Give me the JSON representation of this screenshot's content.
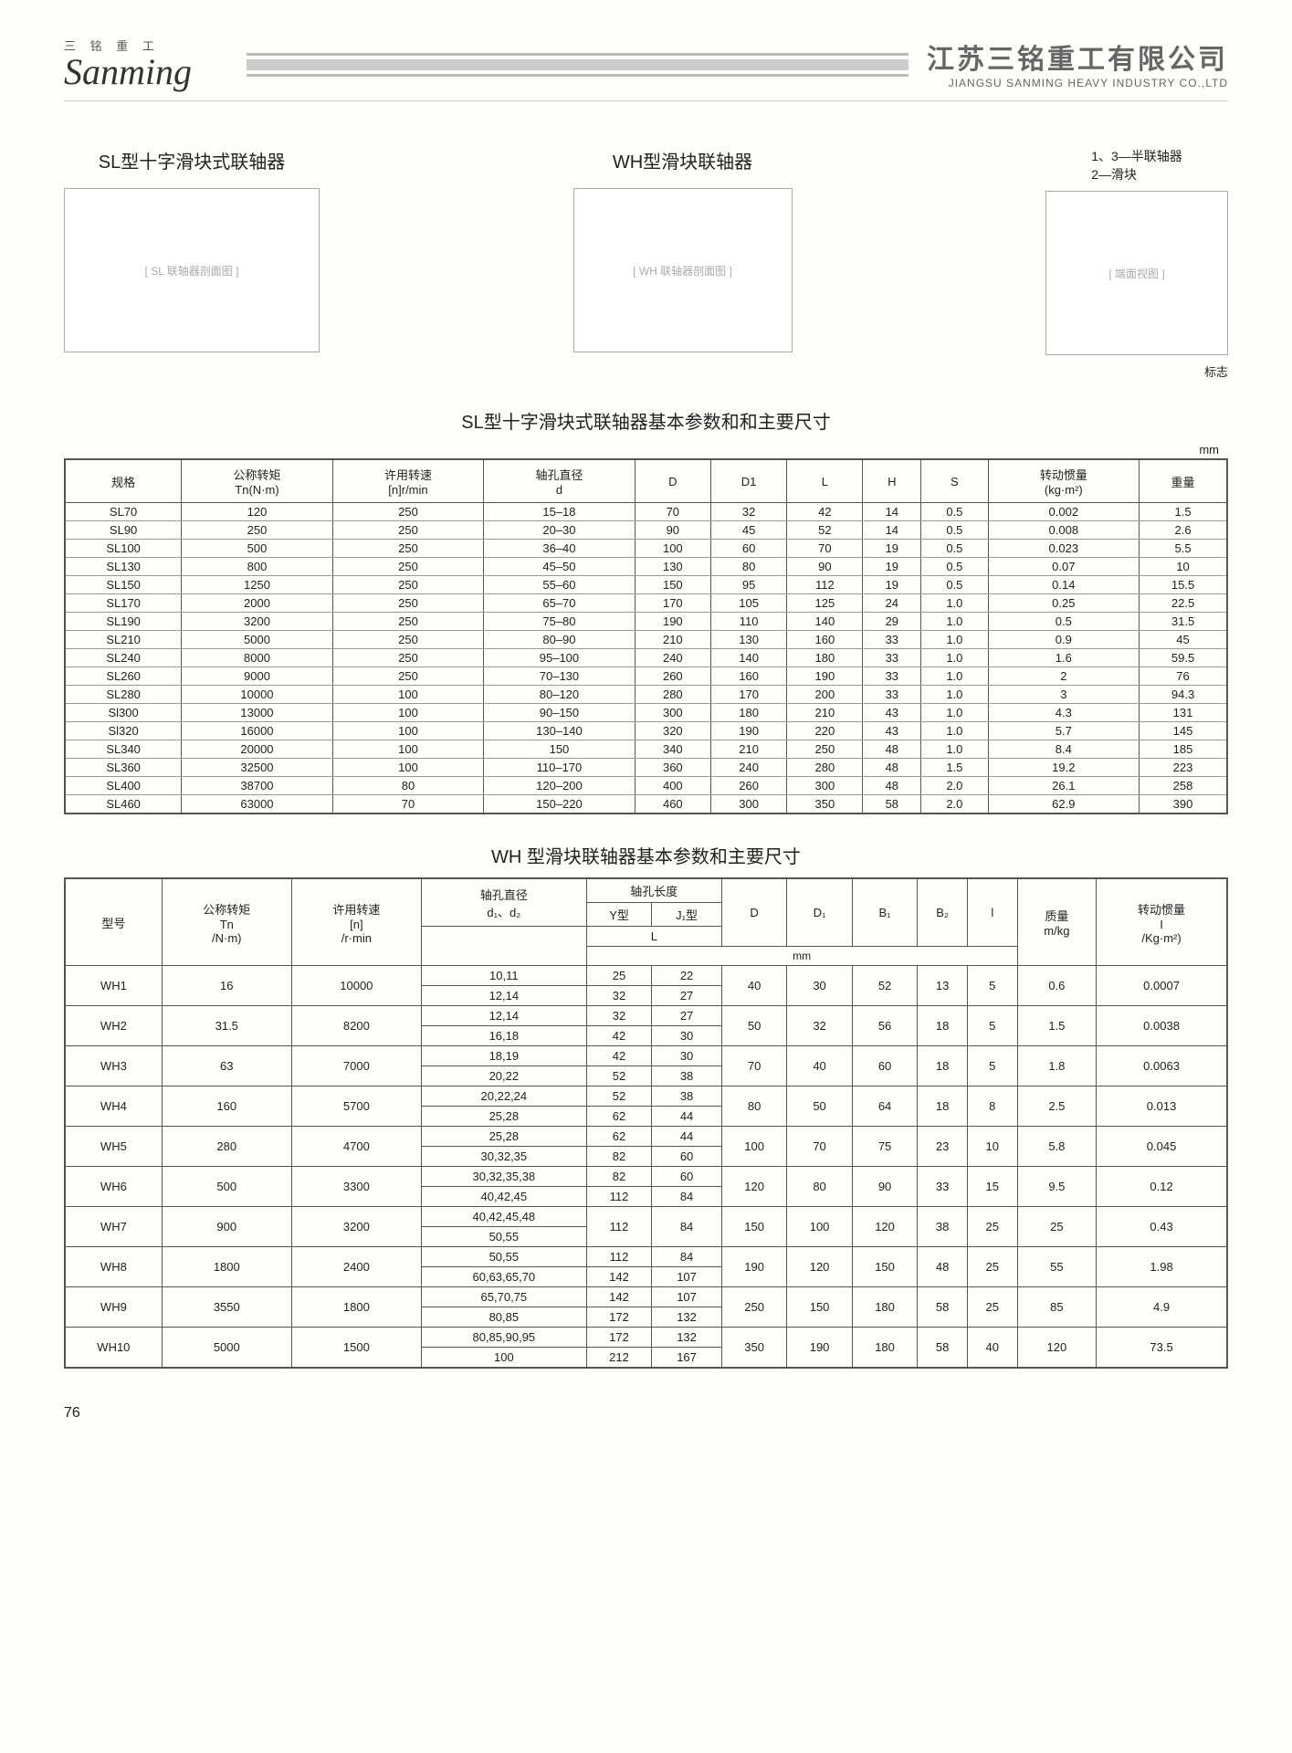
{
  "header": {
    "logo_cn": "三 铭 重 工",
    "logo_en": "Sanming",
    "company_cn": "江苏三铭重工有限公司",
    "company_en": "JIANGSU SANMING HEAVY INDUSTRY CO.,LTD"
  },
  "diagrams": {
    "sl_title": "SL型十字滑块式联轴器",
    "wh_title": "WH型滑块联轴器",
    "legend_line1": "1、3—半联轴器",
    "legend_line2": "2—滑块",
    "mark_label": "标志",
    "sl_placeholder": "[ SL 联轴器剖面图 ]",
    "wh_placeholder": "[ WH 联轴器剖面图 ]",
    "round_placeholder": "[ 端面视图 ]"
  },
  "sl_section": {
    "title": "SL型十字滑块式联轴器基本参数和和主要尺寸",
    "unit": "mm",
    "headers": [
      "规格",
      "公称转矩\nTn(N·m)",
      "许用转速\n[n]r/min",
      "轴孔直径\nd",
      "D",
      "D1",
      "L",
      "H",
      "S",
      "转动惯量\n(kg·m²)",
      "重量"
    ],
    "rows": [
      [
        "SL70",
        "120",
        "250",
        "15–18",
        "70",
        "32",
        "42",
        "14",
        "0.5",
        "0.002",
        "1.5"
      ],
      [
        "SL90",
        "250",
        "250",
        "20–30",
        "90",
        "45",
        "52",
        "14",
        "0.5",
        "0.008",
        "2.6"
      ],
      [
        "SL100",
        "500",
        "250",
        "36–40",
        "100",
        "60",
        "70",
        "19",
        "0.5",
        "0.023",
        "5.5"
      ],
      [
        "SL130",
        "800",
        "250",
        "45–50",
        "130",
        "80",
        "90",
        "19",
        "0.5",
        "0.07",
        "10"
      ],
      [
        "SL150",
        "1250",
        "250",
        "55–60",
        "150",
        "95",
        "112",
        "19",
        "0.5",
        "0.14",
        "15.5"
      ],
      [
        "SL170",
        "2000",
        "250",
        "65–70",
        "170",
        "105",
        "125",
        "24",
        "1.0",
        "0.25",
        "22.5"
      ],
      [
        "SL190",
        "3200",
        "250",
        "75–80",
        "190",
        "110",
        "140",
        "29",
        "1.0",
        "0.5",
        "31.5"
      ],
      [
        "SL210",
        "5000",
        "250",
        "80–90",
        "210",
        "130",
        "160",
        "33",
        "1.0",
        "0.9",
        "45"
      ],
      [
        "SL240",
        "8000",
        "250",
        "95–100",
        "240",
        "140",
        "180",
        "33",
        "1.0",
        "1.6",
        "59.5"
      ],
      [
        "SL260",
        "9000",
        "250",
        "70–130",
        "260",
        "160",
        "190",
        "33",
        "1.0",
        "2",
        "76"
      ],
      [
        "SL280",
        "10000",
        "100",
        "80–120",
        "280",
        "170",
        "200",
        "33",
        "1.0",
        "3",
        "94.3"
      ],
      [
        "Sl300",
        "13000",
        "100",
        "90–150",
        "300",
        "180",
        "210",
        "43",
        "1.0",
        "4.3",
        "131"
      ],
      [
        "Sl320",
        "16000",
        "100",
        "130–140",
        "320",
        "190",
        "220",
        "43",
        "1.0",
        "5.7",
        "145"
      ],
      [
        "SL340",
        "20000",
        "100",
        "150",
        "340",
        "210",
        "250",
        "48",
        "1.0",
        "8.4",
        "185"
      ],
      [
        "SL360",
        "32500",
        "100",
        "110–170",
        "360",
        "240",
        "280",
        "48",
        "1.5",
        "19.2",
        "223"
      ],
      [
        "SL400",
        "38700",
        "80",
        "120–200",
        "400",
        "260",
        "300",
        "48",
        "2.0",
        "26.1",
        "258"
      ],
      [
        "SL460",
        "63000",
        "70",
        "150–220",
        "460",
        "300",
        "350",
        "58",
        "2.0",
        "62.9",
        "390"
      ]
    ]
  },
  "wh_section": {
    "title": "WH 型滑块联轴器基本参数和主要尺寸",
    "headers": {
      "model": "型号",
      "torque": "公称转矩\nTn\n/N·m)",
      "speed": "许用转速\n[n]\n/r·min",
      "bore": "轴孔直径\nd₁、d₂",
      "bore_len": "轴孔长度",
      "y_type": "Y型",
      "j_type": "J₁型",
      "L": "L",
      "D": "D",
      "D1": "D₁",
      "B1": "B₁",
      "B2": "B₂",
      "l": "l",
      "mass": "质量\nm/kg",
      "inertia": "转动惯量\nI\n/Kg·m²)",
      "mm": "mm"
    },
    "rows": [
      {
        "model": "WH1",
        "tn": "16",
        "n": "10000",
        "d": [
          "10,11",
          "12,14"
        ],
        "y": [
          "25",
          "32"
        ],
        "j": [
          "22",
          "27"
        ],
        "D": "40",
        "D1": "30",
        "B1": "52",
        "B2": "13",
        "l": "5",
        "m": "0.6",
        "I": "0.0007"
      },
      {
        "model": "WH2",
        "tn": "31.5",
        "n": "8200",
        "d": [
          "12,14",
          "16,18"
        ],
        "y": [
          "32",
          "42"
        ],
        "j": [
          "27",
          "30"
        ],
        "D": "50",
        "D1": "32",
        "B1": "56",
        "B2": "18",
        "l": "5",
        "m": "1.5",
        "I": "0.0038"
      },
      {
        "model": "WH3",
        "tn": "63",
        "n": "7000",
        "d": [
          "18,19",
          "20,22"
        ],
        "y": [
          "42",
          "52"
        ],
        "j": [
          "30",
          "38"
        ],
        "D": "70",
        "D1": "40",
        "B1": "60",
        "B2": "18",
        "l": "5",
        "m": "1.8",
        "I": "0.0063"
      },
      {
        "model": "WH4",
        "tn": "160",
        "n": "5700",
        "d": [
          "20,22,24",
          "25,28"
        ],
        "y": [
          "52",
          "62"
        ],
        "j": [
          "38",
          "44"
        ],
        "D": "80",
        "D1": "50",
        "B1": "64",
        "B2": "18",
        "l": "8",
        "m": "2.5",
        "I": "0.013"
      },
      {
        "model": "WH5",
        "tn": "280",
        "n": "4700",
        "d": [
          "25,28",
          "30,32,35"
        ],
        "y": [
          "62",
          "82"
        ],
        "j": [
          "44",
          "60"
        ],
        "D": "100",
        "D1": "70",
        "B1": "75",
        "B2": "23",
        "l": "10",
        "m": "5.8",
        "I": "0.045"
      },
      {
        "model": "WH6",
        "tn": "500",
        "n": "3300",
        "d": [
          "30,32,35,38",
          "40,42,45"
        ],
        "y": [
          "82",
          "112"
        ],
        "j": [
          "60",
          "84"
        ],
        "D": "120",
        "D1": "80",
        "B1": "90",
        "B2": "33",
        "l": "15",
        "m": "9.5",
        "I": "0.12"
      },
      {
        "model": "WH7",
        "tn": "900",
        "n": "3200",
        "d": [
          "40,42,45,48",
          "50,55"
        ],
        "y": [
          "112"
        ],
        "j": [
          "84"
        ],
        "D": "150",
        "D1": "100",
        "B1": "120",
        "B2": "38",
        "l": "25",
        "m": "25",
        "I": "0.43"
      },
      {
        "model": "WH8",
        "tn": "1800",
        "n": "2400",
        "d": [
          "50,55",
          "60,63,65,70"
        ],
        "y": [
          "112",
          "142"
        ],
        "j": [
          "84",
          "107"
        ],
        "D": "190",
        "D1": "120",
        "B1": "150",
        "B2": "48",
        "l": "25",
        "m": "55",
        "I": "1.98"
      },
      {
        "model": "WH9",
        "tn": "3550",
        "n": "1800",
        "d": [
          "65,70,75",
          "80,85"
        ],
        "y": [
          "142",
          "172"
        ],
        "j": [
          "107",
          "132"
        ],
        "D": "250",
        "D1": "150",
        "B1": "180",
        "B2": "58",
        "l": "25",
        "m": "85",
        "I": "4.9"
      },
      {
        "model": "WH10",
        "tn": "5000",
        "n": "1500",
        "d": [
          "80,85,90,95",
          "100"
        ],
        "y": [
          "172",
          "212"
        ],
        "j": [
          "132",
          "167"
        ],
        "D": "350",
        "D1": "190",
        "B1": "180",
        "B2": "58",
        "l": "40",
        "m": "120",
        "I": "73.5"
      }
    ]
  },
  "page_number": "76",
  "colors": {
    "text": "#222222",
    "header_gray": "#666666",
    "bar_gray": "#cccccc",
    "border": "#555555",
    "bg": "#fdfdfa"
  }
}
